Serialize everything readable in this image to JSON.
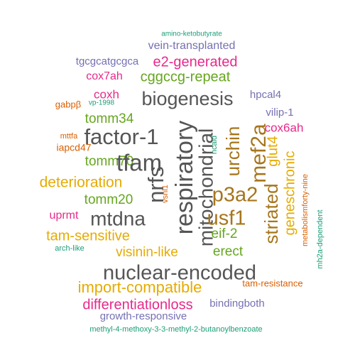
{
  "colors": {
    "green": "#1b9e77",
    "orange": "#d95f02",
    "purple": "#7570b3",
    "pink": "#e7298a",
    "lime": "#66a61e",
    "gold": "#e6ab02",
    "brown": "#a6761d",
    "gray": "#555555"
  },
  "words": [
    {
      "text": "amino-ketobutyrate",
      "color": "green",
      "weight": 1
    },
    {
      "text": "vein-transplanted",
      "color": "purple",
      "weight": 3
    },
    {
      "text": "tgcgcatgcgca",
      "color": "purple",
      "weight": 3
    },
    {
      "text": "e2-generated",
      "color": "pink",
      "weight": 4
    },
    {
      "text": "cox7ah",
      "color": "pink",
      "weight": 3
    },
    {
      "text": "cggccg-repeat",
      "color": "lime",
      "weight": 4
    },
    {
      "text": "coxh",
      "color": "pink",
      "weight": 3
    },
    {
      "text": "biogenesis",
      "color": "gray",
      "weight": 6
    },
    {
      "text": "hpcal4",
      "color": "purple",
      "weight": 3
    },
    {
      "text": "gabpβ",
      "color": "orange",
      "weight": 2
    },
    {
      "text": "vp-1998",
      "color": "green",
      "weight": 1
    },
    {
      "text": "tomm34",
      "color": "lime",
      "weight": 4
    },
    {
      "text": "vilip-1",
      "color": "purple",
      "weight": 3
    },
    {
      "text": "cox6ah",
      "color": "pink",
      "weight": 3
    },
    {
      "text": "mttfa",
      "color": "orange",
      "weight": 2
    },
    {
      "text": "factor-1",
      "color": "gray",
      "weight": 6
    },
    {
      "text": "iapcd47",
      "color": "orange",
      "weight": 2
    },
    {
      "text": "tomm70",
      "color": "lime",
      "weight": 4
    },
    {
      "text": "tfam",
      "color": "gray",
      "weight": 7
    },
    {
      "text": "urchin",
      "color": "brown",
      "weight": 5
    },
    {
      "text": "mef2a",
      "color": "brown",
      "weight": 6
    },
    {
      "text": "glut4",
      "color": "gold",
      "weight": 4
    },
    {
      "text": "ncald",
      "color": "green",
      "weight": 1
    },
    {
      "text": "deterioration",
      "color": "gold",
      "weight": 5
    },
    {
      "text": "nrfs",
      "color": "gray",
      "weight": 7
    },
    {
      "text": "respiratory",
      "color": "gray",
      "weight": 7
    },
    {
      "text": "mitochondrial",
      "color": "gray",
      "weight": 6
    },
    {
      "text": "p3a2",
      "color": "brown",
      "weight": 6
    },
    {
      "text": "geneschronic",
      "color": "gold",
      "weight": 4
    },
    {
      "text": "metabolismforty-nine",
      "color": "orange",
      "weight": 2
    },
    {
      "text": "tomm20",
      "color": "lime",
      "weight": 4
    },
    {
      "text": "vsnl1",
      "color": "orange",
      "weight": 2
    },
    {
      "text": "striated",
      "color": "brown",
      "weight": 5
    },
    {
      "text": "uprmt",
      "color": "pink",
      "weight": 3
    },
    {
      "text": "mtdna",
      "color": "gray",
      "weight": 6
    },
    {
      "text": "usf1",
      "color": "brown",
      "weight": 6
    },
    {
      "text": "mh2a-dependent",
      "color": "green",
      "weight": 1
    },
    {
      "text": "tam-sensitive",
      "color": "gold",
      "weight": 5
    },
    {
      "text": "eif-2",
      "color": "lime",
      "weight": 4
    },
    {
      "text": "arch-like",
      "color": "green",
      "weight": 1
    },
    {
      "text": "visinin-like",
      "color": "gold",
      "weight": 4
    },
    {
      "text": "erect",
      "color": "lime",
      "weight": 4
    },
    {
      "text": "nuclear-encoded",
      "color": "gray",
      "weight": 7
    },
    {
      "text": "import-compatible",
      "color": "gold",
      "weight": 5
    },
    {
      "text": "tam-resistance",
      "color": "orange",
      "weight": 2
    },
    {
      "text": "differentiationloss",
      "color": "pink",
      "weight": 4
    },
    {
      "text": "bindingboth",
      "color": "purple",
      "weight": 3
    },
    {
      "text": "growth-responsive",
      "color": "purple",
      "weight": 3
    },
    {
      "text": "methyl-4-methoxy-3-3-methyl-2-butanoylbenzoate",
      "color": "green",
      "weight": 1
    }
  ]
}
